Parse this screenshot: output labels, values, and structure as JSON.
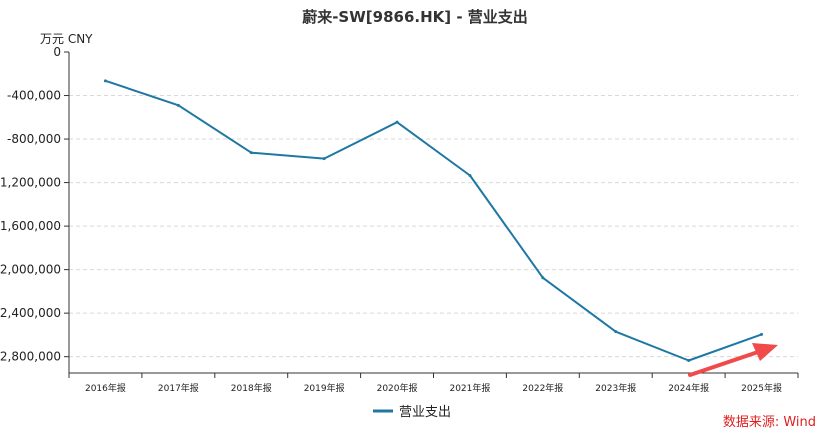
{
  "chart_data": {
    "type": "line",
    "title": "蔚来-SW[9866.HK] - 营业支出",
    "unit_label": "万元  CNY",
    "categories": [
      "2016年报",
      "2017年报",
      "2018年报",
      "2019年报",
      "2020年报",
      "2021年报",
      "2022年报",
      "2023年报",
      "2024年报",
      "2025年报"
    ],
    "y_ticks": [
      0,
      -400000,
      -800000,
      -1200000,
      -1600000,
      -2000000,
      -2400000,
      -2800000
    ],
    "y_tick_labels": [
      "0",
      "-400,000",
      "-800,000",
      "-1,200,000",
      "-1,600,000",
      "-2,000,000",
      "-2,400,000",
      "-2,800,000"
    ],
    "ylim": [
      -2950000,
      0
    ],
    "grid": true,
    "legend_position": "bottom-center",
    "series": [
      {
        "name": "营业支出",
        "color": "#1f77a4",
        "values": [
          -265000,
          -490000,
          -925000,
          -980000,
          -645000,
          -1135000,
          -2075000,
          -2570000,
          -2835000,
          -2595000
        ]
      }
    ],
    "annotation": {
      "type": "arrow",
      "color": "#f04a4a",
      "description": "red arrow pointing up-right at last point"
    }
  },
  "source_label": "数据来源: Wind"
}
